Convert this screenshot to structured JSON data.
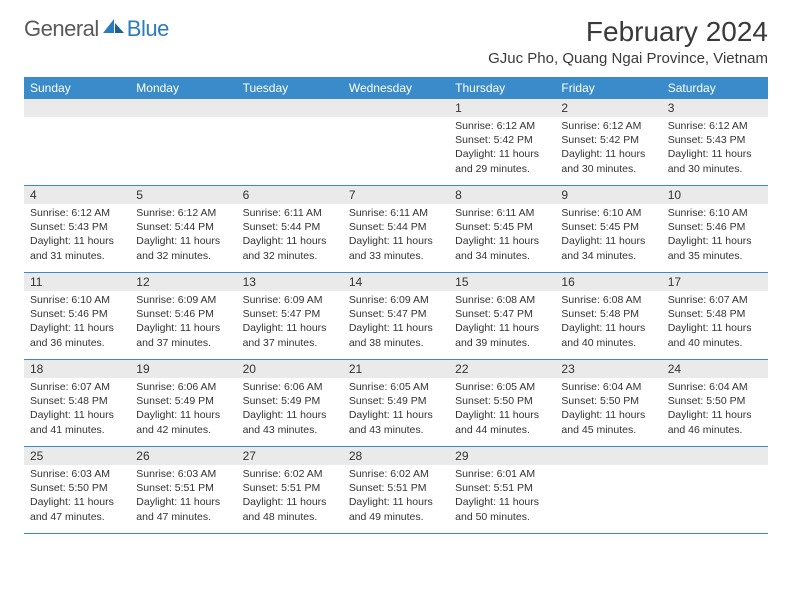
{
  "logo": {
    "text1": "General",
    "text2": "Blue"
  },
  "title": "February 2024",
  "location": "GJuc Pho, Quang Ngai Province, Vietnam",
  "colors": {
    "header_bg": "#3a8bc9",
    "header_text": "#ffffff",
    "daynum_bg": "#eaeaea",
    "border": "#3a8bc9",
    "logo_gray": "#5a5a5a",
    "logo_blue": "#2b7bbf",
    "body_text": "#333333"
  },
  "day_names": [
    "Sunday",
    "Monday",
    "Tuesday",
    "Wednesday",
    "Thursday",
    "Friday",
    "Saturday"
  ],
  "weeks": [
    [
      {
        "day": null
      },
      {
        "day": null
      },
      {
        "day": null
      },
      {
        "day": null
      },
      {
        "day": "1",
        "sunrise": "Sunrise: 6:12 AM",
        "sunset": "Sunset: 5:42 PM",
        "daylight1": "Daylight: 11 hours",
        "daylight2": "and 29 minutes."
      },
      {
        "day": "2",
        "sunrise": "Sunrise: 6:12 AM",
        "sunset": "Sunset: 5:42 PM",
        "daylight1": "Daylight: 11 hours",
        "daylight2": "and 30 minutes."
      },
      {
        "day": "3",
        "sunrise": "Sunrise: 6:12 AM",
        "sunset": "Sunset: 5:43 PM",
        "daylight1": "Daylight: 11 hours",
        "daylight2": "and 30 minutes."
      }
    ],
    [
      {
        "day": "4",
        "sunrise": "Sunrise: 6:12 AM",
        "sunset": "Sunset: 5:43 PM",
        "daylight1": "Daylight: 11 hours",
        "daylight2": "and 31 minutes."
      },
      {
        "day": "5",
        "sunrise": "Sunrise: 6:12 AM",
        "sunset": "Sunset: 5:44 PM",
        "daylight1": "Daylight: 11 hours",
        "daylight2": "and 32 minutes."
      },
      {
        "day": "6",
        "sunrise": "Sunrise: 6:11 AM",
        "sunset": "Sunset: 5:44 PM",
        "daylight1": "Daylight: 11 hours",
        "daylight2": "and 32 minutes."
      },
      {
        "day": "7",
        "sunrise": "Sunrise: 6:11 AM",
        "sunset": "Sunset: 5:44 PM",
        "daylight1": "Daylight: 11 hours",
        "daylight2": "and 33 minutes."
      },
      {
        "day": "8",
        "sunrise": "Sunrise: 6:11 AM",
        "sunset": "Sunset: 5:45 PM",
        "daylight1": "Daylight: 11 hours",
        "daylight2": "and 34 minutes."
      },
      {
        "day": "9",
        "sunrise": "Sunrise: 6:10 AM",
        "sunset": "Sunset: 5:45 PM",
        "daylight1": "Daylight: 11 hours",
        "daylight2": "and 34 minutes."
      },
      {
        "day": "10",
        "sunrise": "Sunrise: 6:10 AM",
        "sunset": "Sunset: 5:46 PM",
        "daylight1": "Daylight: 11 hours",
        "daylight2": "and 35 minutes."
      }
    ],
    [
      {
        "day": "11",
        "sunrise": "Sunrise: 6:10 AM",
        "sunset": "Sunset: 5:46 PM",
        "daylight1": "Daylight: 11 hours",
        "daylight2": "and 36 minutes."
      },
      {
        "day": "12",
        "sunrise": "Sunrise: 6:09 AM",
        "sunset": "Sunset: 5:46 PM",
        "daylight1": "Daylight: 11 hours",
        "daylight2": "and 37 minutes."
      },
      {
        "day": "13",
        "sunrise": "Sunrise: 6:09 AM",
        "sunset": "Sunset: 5:47 PM",
        "daylight1": "Daylight: 11 hours",
        "daylight2": "and 37 minutes."
      },
      {
        "day": "14",
        "sunrise": "Sunrise: 6:09 AM",
        "sunset": "Sunset: 5:47 PM",
        "daylight1": "Daylight: 11 hours",
        "daylight2": "and 38 minutes."
      },
      {
        "day": "15",
        "sunrise": "Sunrise: 6:08 AM",
        "sunset": "Sunset: 5:47 PM",
        "daylight1": "Daylight: 11 hours",
        "daylight2": "and 39 minutes."
      },
      {
        "day": "16",
        "sunrise": "Sunrise: 6:08 AM",
        "sunset": "Sunset: 5:48 PM",
        "daylight1": "Daylight: 11 hours",
        "daylight2": "and 40 minutes."
      },
      {
        "day": "17",
        "sunrise": "Sunrise: 6:07 AM",
        "sunset": "Sunset: 5:48 PM",
        "daylight1": "Daylight: 11 hours",
        "daylight2": "and 40 minutes."
      }
    ],
    [
      {
        "day": "18",
        "sunrise": "Sunrise: 6:07 AM",
        "sunset": "Sunset: 5:48 PM",
        "daylight1": "Daylight: 11 hours",
        "daylight2": "and 41 minutes."
      },
      {
        "day": "19",
        "sunrise": "Sunrise: 6:06 AM",
        "sunset": "Sunset: 5:49 PM",
        "daylight1": "Daylight: 11 hours",
        "daylight2": "and 42 minutes."
      },
      {
        "day": "20",
        "sunrise": "Sunrise: 6:06 AM",
        "sunset": "Sunset: 5:49 PM",
        "daylight1": "Daylight: 11 hours",
        "daylight2": "and 43 minutes."
      },
      {
        "day": "21",
        "sunrise": "Sunrise: 6:05 AM",
        "sunset": "Sunset: 5:49 PM",
        "daylight1": "Daylight: 11 hours",
        "daylight2": "and 43 minutes."
      },
      {
        "day": "22",
        "sunrise": "Sunrise: 6:05 AM",
        "sunset": "Sunset: 5:50 PM",
        "daylight1": "Daylight: 11 hours",
        "daylight2": "and 44 minutes."
      },
      {
        "day": "23",
        "sunrise": "Sunrise: 6:04 AM",
        "sunset": "Sunset: 5:50 PM",
        "daylight1": "Daylight: 11 hours",
        "daylight2": "and 45 minutes."
      },
      {
        "day": "24",
        "sunrise": "Sunrise: 6:04 AM",
        "sunset": "Sunset: 5:50 PM",
        "daylight1": "Daylight: 11 hours",
        "daylight2": "and 46 minutes."
      }
    ],
    [
      {
        "day": "25",
        "sunrise": "Sunrise: 6:03 AM",
        "sunset": "Sunset: 5:50 PM",
        "daylight1": "Daylight: 11 hours",
        "daylight2": "and 47 minutes."
      },
      {
        "day": "26",
        "sunrise": "Sunrise: 6:03 AM",
        "sunset": "Sunset: 5:51 PM",
        "daylight1": "Daylight: 11 hours",
        "daylight2": "and 47 minutes."
      },
      {
        "day": "27",
        "sunrise": "Sunrise: 6:02 AM",
        "sunset": "Sunset: 5:51 PM",
        "daylight1": "Daylight: 11 hours",
        "daylight2": "and 48 minutes."
      },
      {
        "day": "28",
        "sunrise": "Sunrise: 6:02 AM",
        "sunset": "Sunset: 5:51 PM",
        "daylight1": "Daylight: 11 hours",
        "daylight2": "and 49 minutes."
      },
      {
        "day": "29",
        "sunrise": "Sunrise: 6:01 AM",
        "sunset": "Sunset: 5:51 PM",
        "daylight1": "Daylight: 11 hours",
        "daylight2": "and 50 minutes."
      },
      {
        "day": null
      },
      {
        "day": null
      }
    ]
  ]
}
